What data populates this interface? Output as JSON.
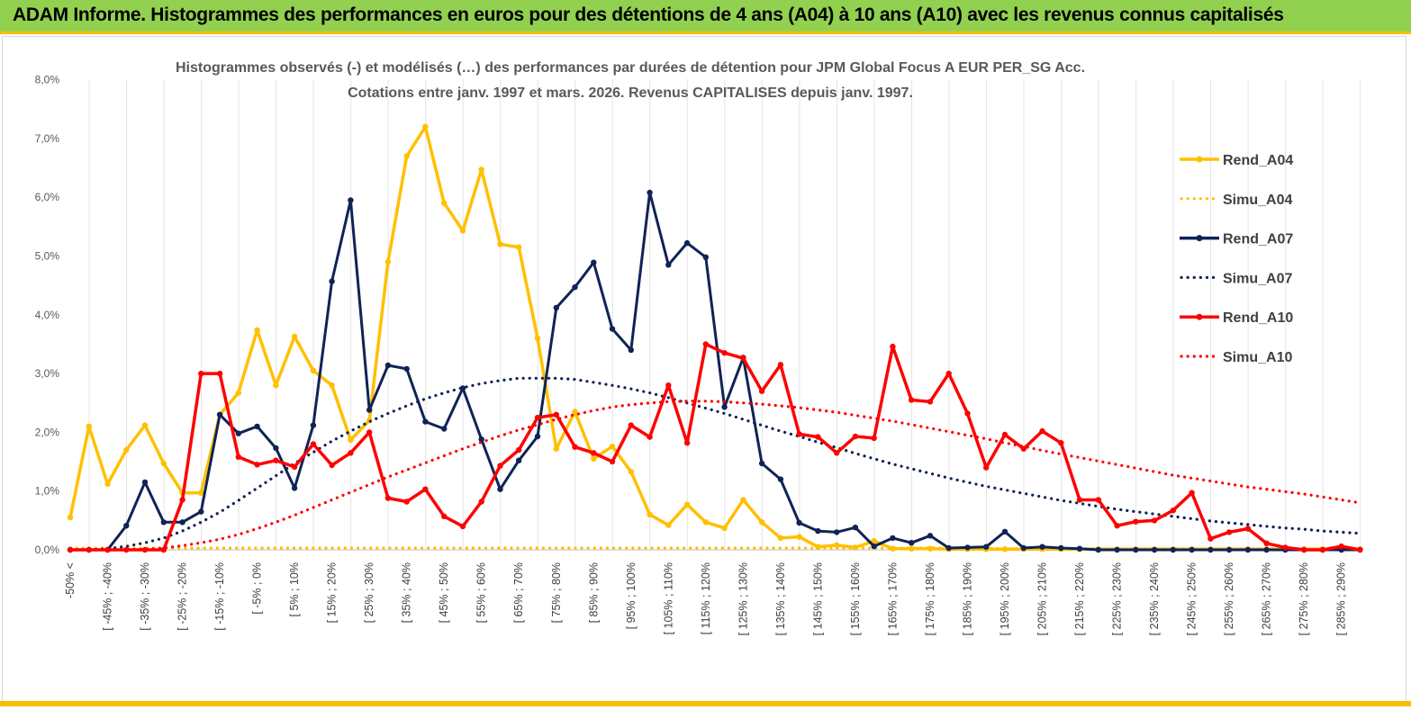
{
  "banner": {
    "title": "ADAM Informe. Histogrammes des performances en euros pour des détentions de 4 ans (A04) à 10 ans (A10) avec les revenus connus capitalisés"
  },
  "colors": {
    "banner_bg": "#92d050",
    "accent_yellow": "#ffc000",
    "navy": "#0f2356",
    "red": "#ff0000"
  },
  "chart_data": {
    "type": "line",
    "title": "Histogrammes observés (-) et modélisés (…) des performances par durées de détention pour JPM Global Focus A EUR PER_SG Acc.",
    "subtitle": "Cotations entre janv. 1997 et mars. 2026. Revenus CAPITALISES depuis janv. 1997.",
    "xlabel": "",
    "ylabel": "",
    "ylim": [
      0,
      8
    ],
    "y_tick_labels": [
      "0,0%",
      "1,0%",
      "2,0%",
      "3,0%",
      "4,0%",
      "5,0%",
      "6,0%",
      "7,0%",
      "8,0%"
    ],
    "y_unit": "%",
    "grid": "vertical",
    "legend_position": "right",
    "x_tick_labels": [
      "-50% <",
      "[ -45% ; -40%",
      "[ -35% ; -30%",
      "[ -25% ; -20%",
      "[ -15% ; -10%",
      "[ -5% ; 0%",
      "[ 5% ; 10%",
      "[ 15% ; 20%",
      "[ 25% ; 30%",
      "[ 35% ; 40%",
      "[ 45% ; 50%",
      "[ 55% ; 60%",
      "[ 65% ; 70%",
      "[ 75% ; 80%",
      "[ 85% ; 90%",
      "[ 95% ; 100%",
      "[ 105% ; 110%",
      "[ 115% ; 120%",
      "[ 125% ; 130%",
      "[ 135% ; 140%",
      "[ 145% ; 150%",
      "[ 155% ; 160%",
      "[ 165% ; 170%",
      "[ 175% ; 180%",
      "[ 185% ; 190%",
      "[ 195% ; 200%",
      "[ 205% ; 210%",
      "[ 215% ; 220%",
      "[ 225% ; 230%",
      "[ 235% ; 240%",
      "[ 245% ; 250%",
      "[ 255% ; 260%",
      "[ 265% ; 270%",
      "[ 275% ; 280%",
      "[ 285% ; 290%"
    ],
    "series": [
      {
        "name": "Rend_A04",
        "style": "solid",
        "color": "#ffc000",
        "values": [
          0.55,
          2.1,
          1.12,
          1.7,
          2.12,
          1.47,
          0.97,
          0.97,
          2.3,
          2.67,
          3.74,
          2.8,
          3.63,
          3.05,
          2.8,
          1.87,
          2.2,
          4.9,
          6.7,
          7.2,
          5.9,
          5.43,
          6.47,
          5.2,
          5.15,
          3.6,
          1.72,
          2.35,
          1.55,
          1.76,
          1.33,
          0.6,
          0.42,
          0.77,
          0.47,
          0.37,
          0.85,
          0.47,
          0.2,
          0.22,
          0.05,
          0.08,
          0.04,
          0.15,
          0.02,
          0.02,
          0.02,
          0.01,
          0.01,
          0.01,
          0.01,
          0.01,
          0.01,
          0.01,
          0.01,
          0.01,
          0.01,
          0.01,
          0.01,
          0.01,
          0.01,
          0.01,
          0.01,
          0.01,
          0.01,
          0.01,
          0.01,
          0.01,
          0.01,
          0.01
        ]
      },
      {
        "name": "Simu_A04",
        "style": "dotted",
        "color": "#ffc000",
        "values": [
          0.03,
          0.03,
          0.03,
          0.03,
          0.03,
          0.03,
          0.03,
          0.03,
          0.03,
          0.03,
          0.03,
          0.03,
          0.03,
          0.03,
          0.03,
          0.03,
          0.03,
          0.03,
          0.03,
          0.03,
          0.03,
          0.03,
          0.03,
          0.03,
          0.03,
          0.03,
          0.03,
          0.03,
          0.03,
          0.03,
          0.03,
          0.03,
          0.03,
          0.03,
          0.03,
          0.03,
          0.03,
          0.03,
          0.03,
          0.03,
          0.03,
          0.03,
          0.03,
          0.03,
          0.03,
          0.03,
          0.03,
          0.03,
          0.03,
          0.03,
          0.02,
          0.02,
          0.02,
          0.02,
          0.02,
          0.02,
          0.02,
          0.02,
          0.02,
          0.02,
          0.02,
          0.02,
          0.02,
          0.02,
          0.02,
          0.02,
          0.02,
          0.02,
          0.02,
          0.02
        ]
      },
      {
        "name": "Rend_A07",
        "style": "solid",
        "color": "#0f2356",
        "values": [
          0,
          0,
          0,
          0.41,
          1.15,
          0.47,
          0.47,
          0.65,
          2.3,
          1.98,
          2.1,
          1.73,
          1.05,
          2.12,
          4.57,
          5.95,
          2.38,
          3.14,
          3.08,
          2.18,
          2.06,
          2.75,
          1.88,
          1.03,
          1.52,
          1.93,
          4.12,
          4.47,
          4.89,
          3.76,
          3.4,
          6.08,
          4.85,
          5.22,
          4.98,
          2.43,
          3.27,
          1.47,
          1.2,
          0.46,
          0.32,
          0.3,
          0.38,
          0.06,
          0.2,
          0.12,
          0.24,
          0.03,
          0.04,
          0.05,
          0.31,
          0.03,
          0.05,
          0.03,
          0.02,
          0,
          0,
          0,
          0,
          0,
          0,
          0,
          0,
          0,
          0,
          0,
          0,
          0,
          0,
          0
        ]
      },
      {
        "name": "Simu_A07",
        "style": "dotted",
        "color": "#0f2356",
        "values": [
          0,
          0,
          0.02,
          0.06,
          0.12,
          0.2,
          0.32,
          0.47,
          0.64,
          0.84,
          1.05,
          1.26,
          1.47,
          1.66,
          1.85,
          2.02,
          2.18,
          2.32,
          2.45,
          2.57,
          2.67,
          2.76,
          2.83,
          2.88,
          2.92,
          2.92,
          2.92,
          2.9,
          2.85,
          2.8,
          2.74,
          2.67,
          2.59,
          2.5,
          2.41,
          2.32,
          2.22,
          2.12,
          2.02,
          1.93,
          1.83,
          1.74,
          1.64,
          1.55,
          1.46,
          1.38,
          1.3,
          1.22,
          1.15,
          1.08,
          1.02,
          0.96,
          0.9,
          0.84,
          0.79,
          0.74,
          0.69,
          0.65,
          0.61,
          0.57,
          0.53,
          0.49,
          0.46,
          0.43,
          0.4,
          0.37,
          0.35,
          0.32,
          0.3,
          0.28
        ]
      },
      {
        "name": "Rend_A10",
        "style": "solid",
        "color": "#ff0000",
        "values": [
          0,
          0,
          0,
          0,
          0,
          0,
          0.85,
          3.0,
          3.0,
          1.58,
          1.45,
          1.52,
          1.41,
          1.8,
          1.44,
          1.65,
          2.0,
          0.88,
          0.82,
          1.03,
          0.57,
          0.4,
          0.82,
          1.43,
          1.7,
          2.25,
          2.3,
          1.75,
          1.65,
          1.5,
          2.12,
          1.92,
          2.8,
          1.82,
          3.5,
          3.35,
          3.26,
          2.7,
          3.15,
          1.97,
          1.92,
          1.65,
          1.93,
          1.9,
          3.46,
          2.55,
          2.52,
          3.0,
          2.32,
          1.4,
          1.96,
          1.72,
          2.02,
          1.82,
          0.85,
          0.85,
          0.41,
          0.48,
          0.5,
          0.67,
          0.97,
          0.19,
          0.3,
          0.36,
          0.11,
          0.04,
          0,
          0,
          0.06,
          0
        ]
      },
      {
        "name": "Simu_A10",
        "style": "dotted",
        "color": "#ff0000",
        "values": [
          0,
          0,
          0,
          0,
          0.01,
          0.03,
          0.07,
          0.12,
          0.18,
          0.26,
          0.36,
          0.47,
          0.59,
          0.72,
          0.85,
          0.98,
          1.11,
          1.24,
          1.36,
          1.48,
          1.6,
          1.72,
          1.83,
          1.94,
          2.04,
          2.13,
          2.22,
          2.3,
          2.37,
          2.43,
          2.47,
          2.5,
          2.52,
          2.53,
          2.53,
          2.52,
          2.5,
          2.48,
          2.45,
          2.42,
          2.38,
          2.34,
          2.29,
          2.24,
          2.19,
          2.13,
          2.07,
          2.01,
          1.95,
          1.89,
          1.82,
          1.76,
          1.69,
          1.63,
          1.57,
          1.51,
          1.45,
          1.39,
          1.33,
          1.27,
          1.22,
          1.17,
          1.12,
          1.07,
          1.03,
          0.99,
          0.95,
          0.9,
          0.85,
          0.8
        ]
      }
    ]
  }
}
